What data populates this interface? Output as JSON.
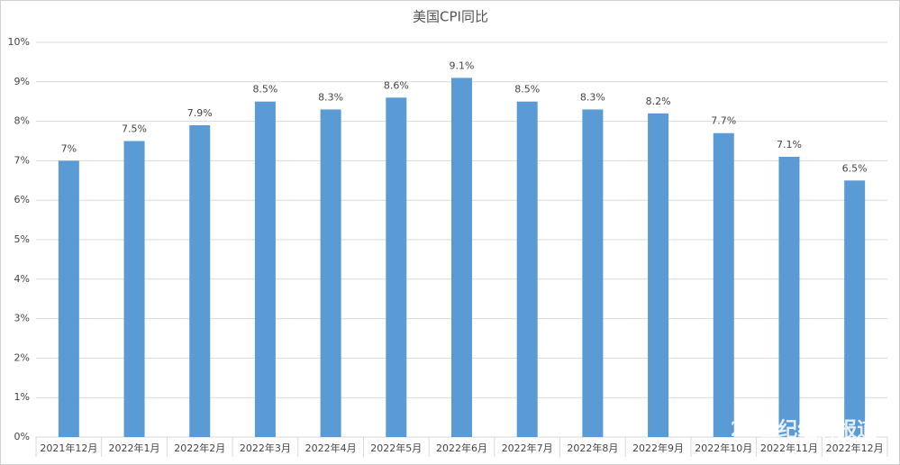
{
  "chart_data": {
    "type": "bar",
    "title": "美国CPI同比",
    "categories": [
      "2021年12月",
      "2022年1月",
      "2022年2月",
      "2022年3月",
      "2022年4月",
      "2022年5月",
      "2022年6月",
      "2022年7月",
      "2022年8月",
      "2022年9月",
      "2022年10月",
      "2022年11月",
      "2022年12月"
    ],
    "values": [
      7,
      7.5,
      7.9,
      8.5,
      8.3,
      8.6,
      9.1,
      8.5,
      8.3,
      8.2,
      7.7,
      7.1,
      6.5
    ],
    "value_labels": [
      "7%",
      "7.5%",
      "7.9%",
      "8.5%",
      "8.3%",
      "8.6%",
      "9.1%",
      "8.5%",
      "8.3%",
      "8.2%",
      "7.7%",
      "7.1%",
      "6.5%"
    ],
    "color": "#5b9bd5",
    "ylim": [
      0,
      10
    ],
    "yticks": [
      {
        "value": 0,
        "label": "0%"
      },
      {
        "value": 1,
        "label": "1%"
      },
      {
        "value": 2,
        "label": "2%"
      },
      {
        "value": 3,
        "label": "3%"
      },
      {
        "value": 4,
        "label": "4%"
      },
      {
        "value": 5,
        "label": "5%"
      },
      {
        "value": 6,
        "label": "6%"
      },
      {
        "value": 7,
        "label": "7%"
      },
      {
        "value": 8,
        "label": "8%"
      },
      {
        "value": 9,
        "label": "9%"
      },
      {
        "value": 10,
        "label": "10%"
      }
    ],
    "grid": true,
    "watermark": "21世纪经济报道"
  }
}
